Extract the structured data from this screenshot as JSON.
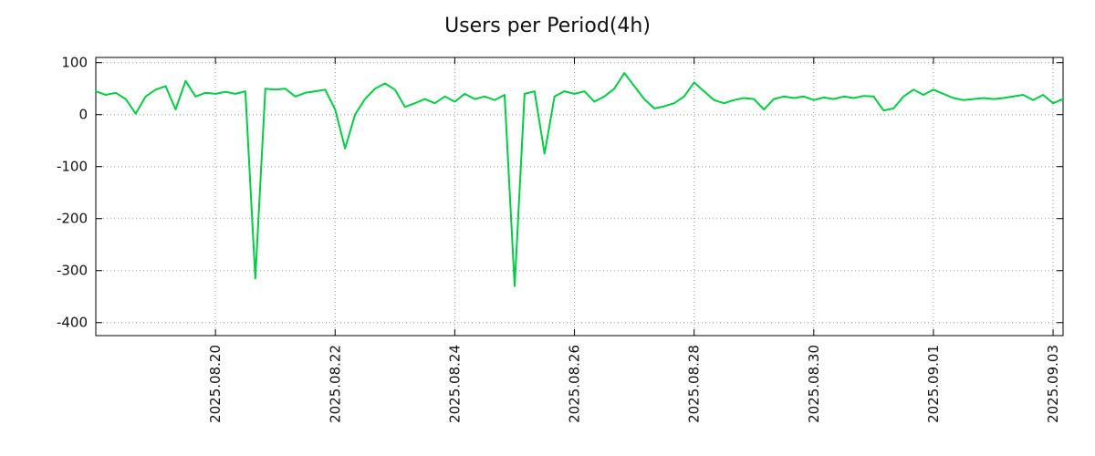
{
  "chart_data": {
    "type": "line",
    "title": "Users per Period(4h)",
    "xlabel": "",
    "ylabel": "",
    "interval_hours": 4,
    "x_tick_labels": [
      "2025.08.20",
      "2025.08.22",
      "2025.08.24",
      "2025.08.26",
      "2025.08.28",
      "2025.08.30",
      "2025.09.01",
      "2025.09.03"
    ],
    "x_tick_indices": [
      12,
      24,
      36,
      48,
      60,
      72,
      84,
      96
    ],
    "yticks": [
      100,
      0,
      -100,
      -200,
      -300,
      -400
    ],
    "ylim": [
      -425,
      110
    ],
    "grid": true,
    "grid_style": "dotted",
    "legend": false,
    "line_color": "#00cc44",
    "grid_color": "#999999",
    "border_color": "#000000",
    "values": [
      45,
      38,
      42,
      30,
      2,
      35,
      48,
      55,
      10,
      65,
      35,
      42,
      40,
      44,
      40,
      45,
      -315,
      50,
      48,
      50,
      35,
      42,
      45,
      48,
      10,
      -65,
      0,
      30,
      50,
      60,
      48,
      15,
      22,
      30,
      22,
      35,
      25,
      40,
      30,
      35,
      28,
      38,
      -330,
      40,
      45,
      -75,
      35,
      45,
      40,
      45,
      25,
      35,
      50,
      80,
      55,
      30,
      12,
      16,
      22,
      35,
      62,
      45,
      28,
      22,
      28,
      32,
      30,
      10,
      30,
      35,
      32,
      35,
      28,
      33,
      30,
      35,
      32,
      36,
      35,
      8,
      12,
      35,
      48,
      38,
      48,
      40,
      32,
      28,
      30,
      32,
      30,
      32,
      35,
      38,
      28,
      38,
      22,
      30
    ]
  }
}
